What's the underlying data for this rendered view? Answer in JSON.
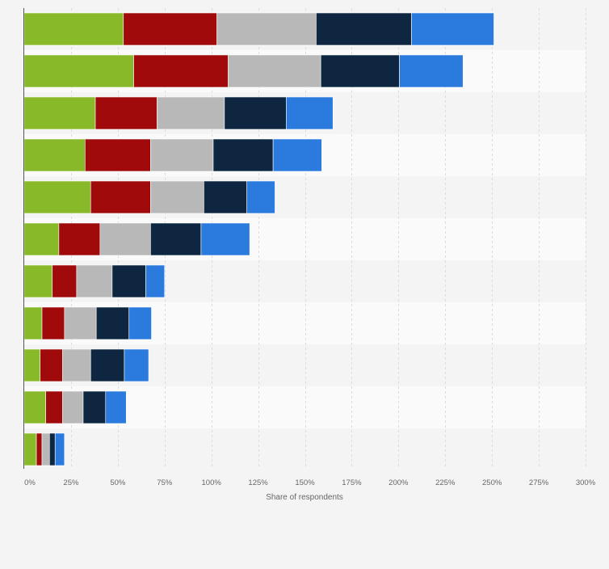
{
  "chart_data": {
    "type": "bar",
    "orientation": "horizontal",
    "stacked": true,
    "categories": [
      "",
      "",
      "",
      "",
      "",
      "",
      "",
      "",
      "",
      "",
      ""
    ],
    "series": [
      {
        "color": "#88b928",
        "values": [
          53,
          58.5,
          38,
          32.5,
          35.5,
          18.5,
          15,
          9.5,
          8.5,
          11.5,
          6.5
        ]
      },
      {
        "color": "#a00a0a",
        "values": [
          50,
          50.5,
          33,
          35,
          32,
          22,
          13,
          12,
          12,
          9,
          3
        ]
      },
      {
        "color": "#b8b8b8",
        "values": [
          53,
          49.5,
          36,
          33.5,
          28.5,
          27,
          19,
          17,
          15,
          11,
          4
        ]
      },
      {
        "color": "#0e2640",
        "values": [
          51,
          42,
          33,
          32,
          23,
          27,
          18,
          17.5,
          18,
          12,
          3
        ]
      },
      {
        "color": "#2b7bdf",
        "values": [
          44,
          34,
          25,
          26,
          15,
          26,
          10,
          12,
          13,
          11,
          5
        ]
      }
    ],
    "xlabel": "Share of respondents",
    "ylabel": "",
    "xlim": [
      0,
      300
    ],
    "xticks": [
      "0%",
      "25%",
      "50%",
      "75%",
      "100%",
      "125%",
      "150%",
      "175%",
      "200%",
      "225%",
      "250%",
      "275%",
      "300%"
    ],
    "grid": true,
    "legend": "none"
  }
}
